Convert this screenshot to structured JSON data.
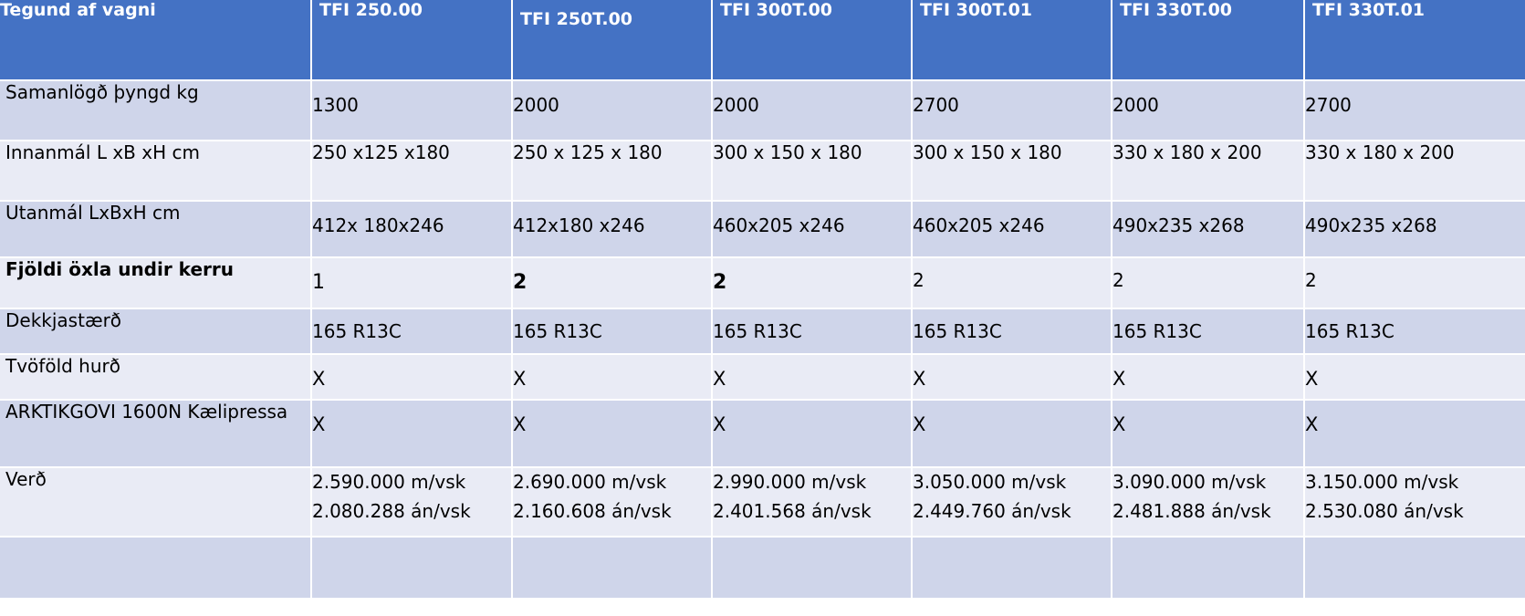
{
  "header": {
    "row_label": "Tegund af vagni",
    "models": [
      "TFI 250.00",
      "TFI 250T.00",
      "TFI 300T.00",
      "TFI 300T.01",
      "TFI 330T.00",
      "TFI 330T.01"
    ]
  },
  "rows": {
    "weight": {
      "label": "Samanlögð þyngd kg",
      "values": [
        "1300",
        "2000",
        "2000",
        "2700",
        "2000",
        "2700"
      ]
    },
    "inner": {
      "label": "Innanmál L xB xH cm",
      "values": [
        "250 x125 x180",
        "250 x 125 x 180",
        "300 x 150 x 180",
        "300 x 150 x 180",
        "330 x 180 x 200",
        "330 x 180 x 200"
      ]
    },
    "outer": {
      "label": "Utanmál LxBxH cm",
      "values": [
        "412x 180x246",
        "412x180 x246",
        "460x205 x246",
        "460x205 x246",
        "490x235 x268",
        "490x235 x268"
      ]
    },
    "axles": {
      "label": "Fjöldi öxla undir kerru",
      "values": [
        "1",
        "2",
        "2",
        "2",
        "2",
        "2"
      ]
    },
    "tire": {
      "label": "Dekkjastærð",
      "values": [
        "165 R13C",
        "165 R13C",
        "165 R13C",
        "165 R13C",
        "165 R13C",
        "165 R13C"
      ]
    },
    "door": {
      "label": "Tvöföld hurð",
      "values": [
        "X",
        "X",
        "X",
        "X",
        "X",
        "X"
      ]
    },
    "press": {
      "label": "ARKTIKGOVI 1600N Kælipressa",
      "values": [
        "X",
        "X",
        "X",
        "X",
        "X",
        "X"
      ]
    },
    "price": {
      "label": "Verð",
      "with_vat": [
        "2.590.000 m/vsk",
        "2.690.000 m/vsk",
        "2.990.000 m/vsk",
        "3.050.000 m/vsk",
        "3.090.000 m/vsk",
        "3.150.000 m/vsk"
      ],
      "without_vat": [
        "2.080.288 án/vsk",
        "2.160.608 án/vsk",
        "2.401.568 án/vsk",
        "2.449.760 án/vsk",
        "2.481.888 án/vsk",
        "2.530.080 án/vsk"
      ]
    }
  }
}
